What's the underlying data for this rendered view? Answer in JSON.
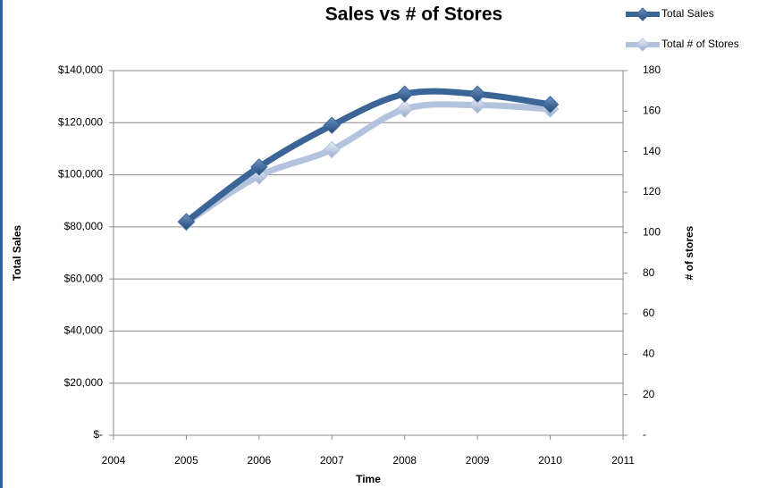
{
  "chart_data": {
    "type": "line",
    "title": "Sales vs # of Stores",
    "x_label": "Time",
    "y_label": "Total Sales",
    "y2_label": "# of stores",
    "x": [
      2005,
      2006,
      2007,
      2008,
      2009,
      2010
    ],
    "series": [
      {
        "name": "Total Sales",
        "color": "#3b6597",
        "values": [
          82000,
          103000,
          119000,
          131000,
          131000,
          127000
        ]
      },
      {
        "name": "Total # of Stores",
        "color": "#b3c3dd",
        "axis": "y2",
        "values": [
          105,
          128,
          141,
          161,
          163,
          161
        ]
      }
    ],
    "xlim": [
      2004,
      2011
    ],
    "xticks": [
      2004,
      2005,
      2006,
      2007,
      2008,
      2009,
      2010,
      2011
    ],
    "ylim": [
      0,
      140000
    ],
    "yticks": [
      {
        "value": 0,
        "label": "$-"
      },
      {
        "value": 20000,
        "label": "$20,000"
      },
      {
        "value": 40000,
        "label": "$40,000"
      },
      {
        "value": 60000,
        "label": "$60,000"
      },
      {
        "value": 80000,
        "label": "$80,000"
      },
      {
        "value": 100000,
        "label": "$100,000"
      },
      {
        "value": 120000,
        "label": "$120,000"
      },
      {
        "value": 140000,
        "label": "$140,000"
      }
    ],
    "y2lim": [
      0,
      180
    ],
    "y2ticks": [
      {
        "value": 0,
        "label": "-"
      },
      20,
      40,
      60,
      80,
      100,
      120,
      140,
      160,
      180
    ],
    "grid": true,
    "smooth": true,
    "legend": "top-right"
  }
}
